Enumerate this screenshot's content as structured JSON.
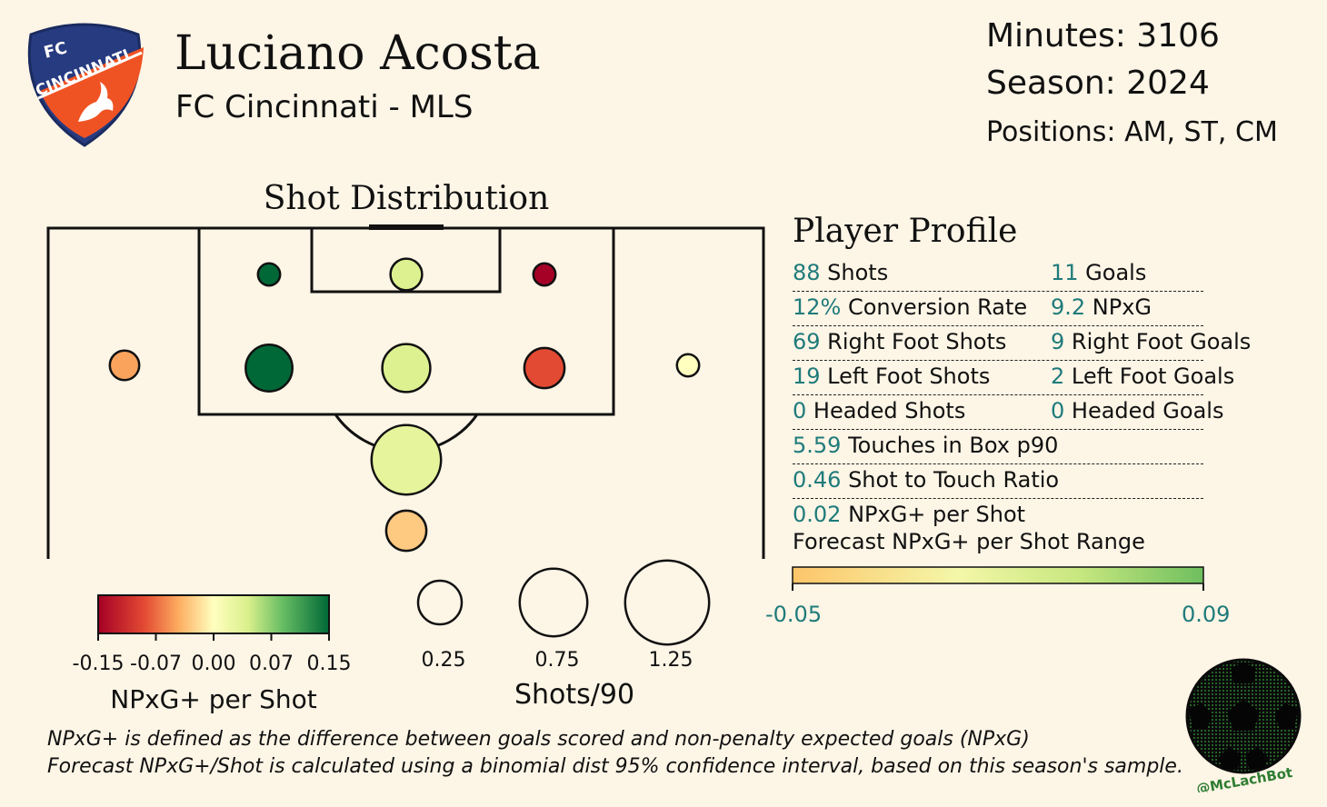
{
  "header": {
    "player_name": "Luciano Acosta",
    "team_league": "FC Cincinnati - MLS",
    "minutes": "Minutes: 3106",
    "season": "Season: 2024",
    "positions": "Positions: AM, ST, CM"
  },
  "logo": {
    "icon": "fc-cincinnati-crest-icon",
    "fc_text": "FC",
    "club_text": "CINCINNATI",
    "colors": {
      "blue": "#263b80",
      "orange": "#f05323"
    }
  },
  "chart_data": {
    "type": "scatter",
    "title": "Shot Distribution",
    "zones": [
      {
        "zone": "six-yard-left",
        "shots_per_90": 0.03,
        "npxg_plus_per_shot": 0.15
      },
      {
        "zone": "six-yard-centre",
        "shots_per_90": 0.1,
        "npxg_plus_per_shot": 0.04
      },
      {
        "zone": "six-yard-right",
        "shots_per_90": 0.03,
        "npxg_plus_per_shot": -0.15
      },
      {
        "zone": "wide-left",
        "shots_per_90": 0.08,
        "npxg_plus_per_shot": -0.05
      },
      {
        "zone": "box-left",
        "shots_per_90": 0.3,
        "npxg_plus_per_shot": 0.15
      },
      {
        "zone": "box-centre",
        "shots_per_90": 0.32,
        "npxg_plus_per_shot": 0.04
      },
      {
        "zone": "box-right",
        "shots_per_90": 0.2,
        "npxg_plus_per_shot": -0.09
      },
      {
        "zone": "wide-right",
        "shots_per_90": 0.03,
        "npxg_plus_per_shot": 0.0
      },
      {
        "zone": "outside-box-centre",
        "shots_per_90": 0.8,
        "npxg_plus_per_shot": 0.03
      },
      {
        "zone": "long-range-centre",
        "shots_per_90": 0.2,
        "npxg_plus_per_shot": -0.03
      }
    ],
    "color_scale": {
      "label": "NPxG+ per Shot",
      "min": -0.15,
      "max": 0.15,
      "ticks": [
        "-0.15",
        "-0.07",
        "0.00",
        "0.07",
        "0.15"
      ]
    },
    "size_legend": {
      "label": "Shots/90",
      "values": [
        0.25,
        0.75,
        1.25
      ],
      "tick_labels": [
        "0.25",
        "0.75",
        "1.25"
      ]
    }
  },
  "profile": {
    "title": "Player Profile",
    "rows": [
      {
        "left_num": "88",
        "left_text": " Shots",
        "right_num": "11",
        "right_text": " Goals"
      },
      {
        "left_num": "12%",
        "left_text": " Conversion Rate",
        "right_num": "9.2",
        "right_text": " NPxG"
      },
      {
        "left_num": "69",
        "left_text": " Right Foot Shots",
        "right_num": "9",
        "right_text": " Right Foot Goals"
      },
      {
        "left_num": "19",
        "left_text": " Left Foot Shots",
        "right_num": "2",
        "right_text": " Left Foot Goals"
      },
      {
        "left_num": "0",
        "left_text": " Headed Shots",
        "right_num": "0",
        "right_text": " Headed Goals"
      },
      {
        "left_num": "5.59",
        "left_text": " Touches in Box p90"
      },
      {
        "left_num": "0.46",
        "left_text": " Shot to Touch Ratio"
      },
      {
        "left_num": "0.02",
        "left_text": " NPxG+ per Shot"
      }
    ],
    "forecast": {
      "label": "Forecast NPxG+ per Shot Range",
      "low": "-0.05",
      "high": "0.09"
    }
  },
  "colors": {
    "accent_teal": "#1f7b7b",
    "background": "#fdf5e6"
  },
  "footer": {
    "note1": "NPxG+ is defined as the difference between goals scored and non-penalty expected goals (NPxG)",
    "note2": "Forecast NPxG+/Shot is calculated using a binomial dist 95% confidence interval, based on this season's sample.",
    "bot_handle": "@McLachBot",
    "bot_icon": "soccer-ball-icon"
  }
}
